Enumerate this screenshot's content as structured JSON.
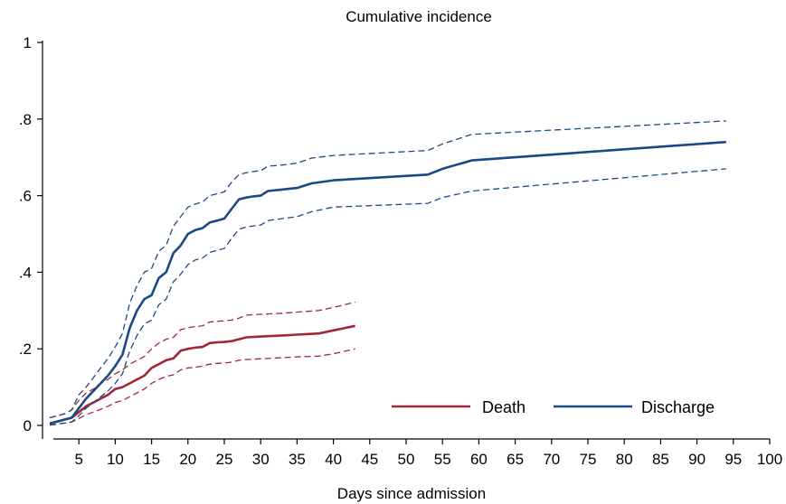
{
  "chart_data": {
    "type": "line",
    "title": "Cumulative incidence",
    "xlabel": "Days since admission",
    "ylabel": "",
    "xlim": [
      0,
      100
    ],
    "ylim": [
      0,
      1
    ],
    "x_ticks": [
      5,
      10,
      15,
      20,
      25,
      30,
      35,
      40,
      45,
      50,
      55,
      60,
      65,
      70,
      75,
      80,
      85,
      90,
      95,
      100
    ],
    "y_ticks": [
      {
        "value": 0,
        "label": "0"
      },
      {
        "value": 0.2,
        "label": ".2"
      },
      {
        "value": 0.4,
        "label": ".4"
      },
      {
        "value": 0.6,
        "label": ".6"
      },
      {
        "value": 0.8,
        "label": ".8"
      },
      {
        "value": 1,
        "label": "1"
      }
    ],
    "grid": false,
    "legend_position": "bottom-right",
    "series": [
      {
        "name": "Death",
        "color": "#a0273a",
        "x": [
          1,
          2,
          3,
          4,
          5,
          6,
          7,
          8,
          9,
          10,
          11,
          12,
          13,
          14,
          15,
          16,
          17,
          18,
          19,
          20,
          21,
          22,
          23,
          24,
          25,
          26,
          27,
          28,
          30,
          33,
          35,
          38,
          40,
          43
        ],
        "y": [
          0.005,
          0.01,
          0.015,
          0.02,
          0.035,
          0.05,
          0.06,
          0.07,
          0.08,
          0.095,
          0.1,
          0.11,
          0.12,
          0.13,
          0.15,
          0.16,
          0.17,
          0.175,
          0.195,
          0.2,
          0.203,
          0.205,
          0.215,
          0.217,
          0.218,
          0.22,
          0.225,
          0.23,
          0.232,
          0.235,
          0.237,
          0.24,
          0.248,
          0.26
        ],
        "lower": [
          0.001,
          0.003,
          0.006,
          0.009,
          0.018,
          0.028,
          0.035,
          0.042,
          0.05,
          0.06,
          0.065,
          0.075,
          0.085,
          0.095,
          0.11,
          0.12,
          0.128,
          0.132,
          0.145,
          0.15,
          0.152,
          0.155,
          0.16,
          0.162,
          0.163,
          0.165,
          0.17,
          0.172,
          0.174,
          0.177,
          0.179,
          0.181,
          0.187,
          0.2
        ],
        "upper": [
          0.02,
          0.025,
          0.03,
          0.04,
          0.065,
          0.085,
          0.095,
          0.11,
          0.12,
          0.135,
          0.145,
          0.16,
          0.17,
          0.18,
          0.2,
          0.215,
          0.225,
          0.23,
          0.25,
          0.255,
          0.258,
          0.26,
          0.27,
          0.272,
          0.273,
          0.275,
          0.28,
          0.288,
          0.29,
          0.293,
          0.296,
          0.3,
          0.308,
          0.322
        ]
      },
      {
        "name": "Discharge",
        "color": "#1a4a86",
        "x": [
          1,
          2,
          3,
          4,
          5,
          6,
          7,
          8,
          9,
          10,
          11,
          12,
          13,
          14,
          15,
          16,
          17,
          18,
          19,
          20,
          21,
          22,
          23,
          24,
          25,
          26,
          27,
          28,
          29,
          30,
          31,
          33,
          35,
          37,
          40,
          53,
          55,
          59,
          94
        ],
        "y": [
          0.005,
          0.01,
          0.015,
          0.02,
          0.045,
          0.07,
          0.09,
          0.11,
          0.13,
          0.155,
          0.185,
          0.255,
          0.3,
          0.33,
          0.34,
          0.385,
          0.4,
          0.45,
          0.47,
          0.5,
          0.51,
          0.515,
          0.53,
          0.535,
          0.54,
          0.565,
          0.59,
          0.595,
          0.598,
          0.6,
          0.612,
          0.616,
          0.62,
          0.632,
          0.64,
          0.655,
          0.67,
          0.692,
          0.74
        ],
        "lower": [
          0.001,
          0.003,
          0.006,
          0.009,
          0.025,
          0.045,
          0.06,
          0.075,
          0.09,
          0.11,
          0.135,
          0.195,
          0.235,
          0.265,
          0.275,
          0.315,
          0.33,
          0.375,
          0.395,
          0.42,
          0.432,
          0.437,
          0.452,
          0.457,
          0.462,
          0.488,
          0.512,
          0.518,
          0.521,
          0.523,
          0.535,
          0.54,
          0.545,
          0.558,
          0.57,
          0.58,
          0.595,
          0.612,
          0.67
        ],
        "upper": [
          0.02,
          0.025,
          0.03,
          0.04,
          0.08,
          0.1,
          0.125,
          0.15,
          0.175,
          0.205,
          0.24,
          0.32,
          0.365,
          0.4,
          0.41,
          0.455,
          0.47,
          0.52,
          0.545,
          0.57,
          0.578,
          0.583,
          0.6,
          0.605,
          0.61,
          0.635,
          0.655,
          0.66,
          0.663,
          0.665,
          0.677,
          0.68,
          0.685,
          0.698,
          0.705,
          0.718,
          0.735,
          0.76,
          0.795
        ]
      }
    ]
  }
}
